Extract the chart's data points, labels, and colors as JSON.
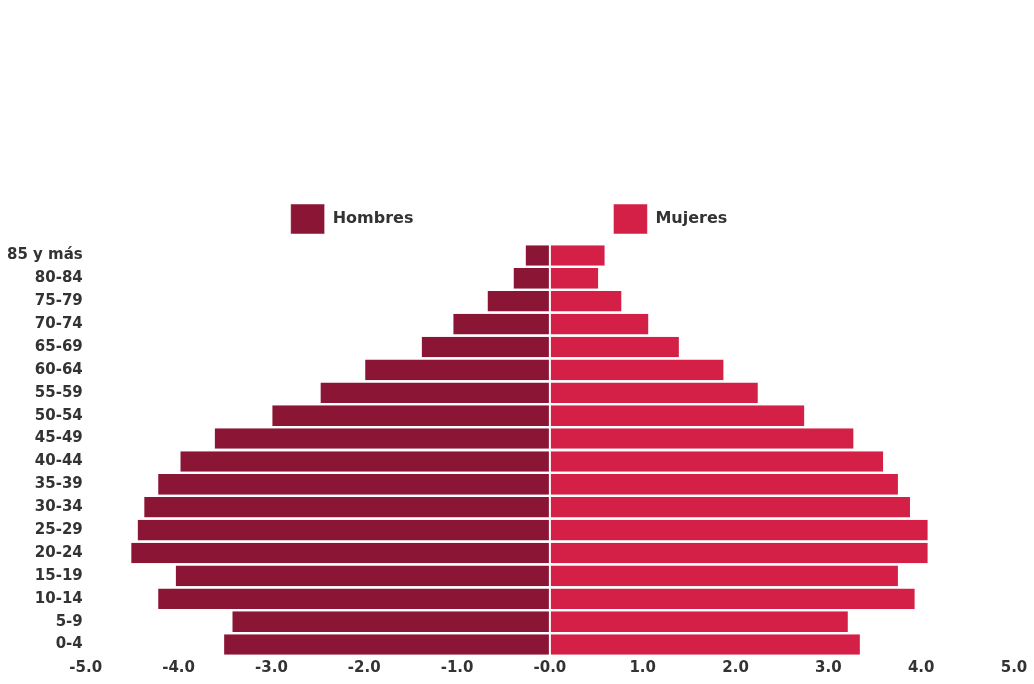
{
  "chart_data": {
    "type": "bar",
    "orientation": "horizontal",
    "stacked": true,
    "categories": [
      "85 y más",
      "80-84",
      "75-79",
      "70-74",
      "65-69",
      "60-64",
      "55-59",
      "50-54",
      "45-49",
      "40-44",
      "35-39",
      "30-34",
      "25-29",
      "20-24",
      "15-19",
      "10-14",
      "5-9",
      "0-4"
    ],
    "series": [
      {
        "name": "Hombres",
        "color": "#8b1535",
        "values": [
          -0.27,
          -0.4,
          -0.68,
          -1.05,
          -1.39,
          -2.0,
          -2.48,
          -3.0,
          -3.62,
          -3.99,
          -4.23,
          -4.38,
          -4.45,
          -4.52,
          -4.04,
          -4.23,
          -3.43,
          -3.52
        ]
      },
      {
        "name": "Mujeres",
        "color": "#d42047",
        "values": [
          0.6,
          0.53,
          0.78,
          1.07,
          1.4,
          1.88,
          2.25,
          2.75,
          3.28,
          3.6,
          3.76,
          3.89,
          4.08,
          4.08,
          3.76,
          3.94,
          3.22,
          3.35
        ]
      }
    ],
    "xlim": [
      -5,
      5
    ],
    "xticks": [
      {
        "value": -5,
        "label": "-5.0"
      },
      {
        "value": -4,
        "label": "-4.0"
      },
      {
        "value": -3,
        "label": "-3.0"
      },
      {
        "value": -2,
        "label": "-2.0"
      },
      {
        "value": -1,
        "label": "-1.0"
      },
      {
        "value": 0,
        "label": "-0.0"
      },
      {
        "value": 1,
        "label": "1.0"
      },
      {
        "value": 2,
        "label": "2.0"
      },
      {
        "value": 3,
        "label": "3.0"
      },
      {
        "value": 4,
        "label": "4.0"
      },
      {
        "value": 5,
        "label": "5.0"
      }
    ],
    "grid": false,
    "legend": "top"
  }
}
